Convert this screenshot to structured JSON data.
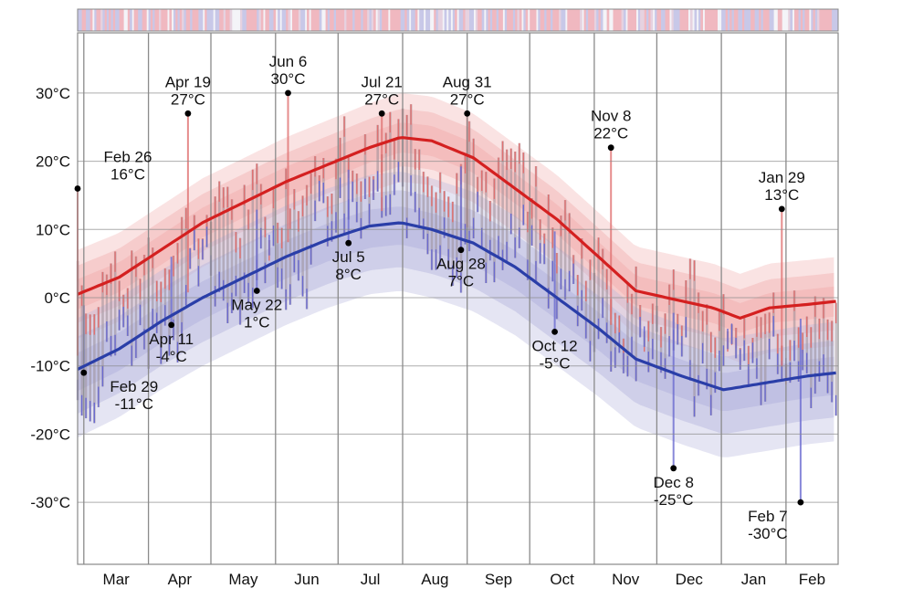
{
  "chart_data": {
    "type": "line",
    "title": "",
    "xlabel": "",
    "ylabel": "",
    "ylim": [
      -40,
      39
    ],
    "y_ticks": [
      {
        "value": 30,
        "label": "30°C"
      },
      {
        "value": 20,
        "label": "20°C"
      },
      {
        "value": 10,
        "label": "10°C"
      },
      {
        "value": 0,
        "label": "0°C"
      },
      {
        "value": -10,
        "label": "-10°C"
      },
      {
        "value": -20,
        "label": "-20°C"
      },
      {
        "value": -30,
        "label": "-30°C"
      }
    ],
    "x_months": [
      "Mar",
      "Apr",
      "May",
      "Jun",
      "Jul",
      "Aug",
      "Sep",
      "Oct",
      "Nov",
      "Dec",
      "Jan",
      "Feb"
    ],
    "grid": true,
    "colors": {
      "high": "#d42020",
      "low": "#2a3ea8",
      "high_band": "#f2b0b0",
      "low_band": "#b4b4de",
      "daily_high": "#e07070",
      "daily_low": "#6a6ad0"
    },
    "series": [
      {
        "key": "avg_high",
        "color": "#d42020",
        "points": [
          [
            0,
            0.5
          ],
          [
            20,
            3
          ],
          [
            40,
            7
          ],
          [
            60,
            11
          ],
          [
            80,
            14
          ],
          [
            100,
            17
          ],
          [
            120,
            19.5
          ],
          [
            140,
            22
          ],
          [
            155,
            23.5
          ],
          [
            170,
            23
          ],
          [
            190,
            20.5
          ],
          [
            210,
            16
          ],
          [
            230,
            11.5
          ],
          [
            250,
            6
          ],
          [
            268,
            1
          ],
          [
            290,
            -0.5
          ],
          [
            305,
            -1.5
          ],
          [
            318,
            -3
          ],
          [
            332,
            -1.5
          ],
          [
            350,
            -1
          ],
          [
            365,
            -0.5
          ]
        ]
      },
      {
        "key": "avg_low",
        "color": "#2a3ea8",
        "points": [
          [
            0,
            -10.5
          ],
          [
            20,
            -7.5
          ],
          [
            40,
            -3.5
          ],
          [
            60,
            0
          ],
          [
            80,
            3
          ],
          [
            100,
            6
          ],
          [
            120,
            8.5
          ],
          [
            140,
            10.5
          ],
          [
            155,
            11
          ],
          [
            170,
            10
          ],
          [
            190,
            8
          ],
          [
            210,
            4.5
          ],
          [
            230,
            0
          ],
          [
            250,
            -4.5
          ],
          [
            268,
            -9
          ],
          [
            290,
            -11.5
          ],
          [
            310,
            -13.5
          ],
          [
            330,
            -12.5
          ],
          [
            350,
            -11.5
          ],
          [
            365,
            -11
          ]
        ]
      }
    ],
    "annotations": [
      {
        "date": "Feb 26",
        "value": "16°C",
        "day": 0,
        "temp": 16,
        "side": "above"
      },
      {
        "date": "Feb 29",
        "value": "-11°C",
        "day": 3,
        "temp": -11,
        "side": "below"
      },
      {
        "date": "Apr 11",
        "value": "-4°C",
        "day": 45,
        "temp": -4,
        "side": "below"
      },
      {
        "date": "Apr 19",
        "value": "27°C",
        "day": 53,
        "temp": 27,
        "side": "above"
      },
      {
        "date": "May 22",
        "value": "1°C",
        "day": 86,
        "temp": 1,
        "side": "below"
      },
      {
        "date": "Jun 6",
        "value": "30°C",
        "day": 101,
        "temp": 30,
        "side": "above"
      },
      {
        "date": "Jul 5",
        "value": "8°C",
        "day": 130,
        "temp": 8,
        "side": "below"
      },
      {
        "date": "Jul 21",
        "value": "27°C",
        "day": 146,
        "temp": 27,
        "side": "above"
      },
      {
        "date": "Aug 28",
        "value": "7°C",
        "day": 184,
        "temp": 7,
        "side": "below"
      },
      {
        "date": "Aug 31",
        "value": "27°C",
        "day": 187,
        "temp": 27,
        "side": "above"
      },
      {
        "date": "Oct 12",
        "value": "-5°C",
        "day": 229,
        "temp": -5,
        "side": "below"
      },
      {
        "date": "Nov 8",
        "value": "22°C",
        "day": 256,
        "temp": 22,
        "side": "above"
      },
      {
        "date": "Dec 8",
        "value": "-25°C",
        "day": 286,
        "temp": -25,
        "side": "below"
      },
      {
        "date": "Jan 29",
        "value": "13°C",
        "day": 338,
        "temp": 13,
        "side": "above"
      },
      {
        "date": "Feb 7",
        "value": "-30°C",
        "day": 347,
        "temp": -30,
        "side": "below"
      }
    ]
  }
}
